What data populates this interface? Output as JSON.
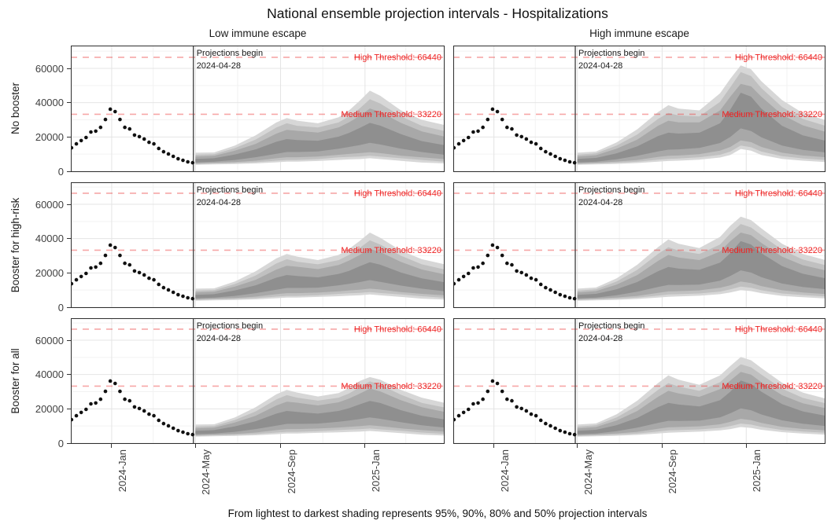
{
  "title": "National ensemble projection intervals - Hospitalizations",
  "caption": "From lightest to darkest shading represents 95%, 90%, 80% and 50% projection intervals",
  "annotations": {
    "projection_begin_line1": "Projections begin",
    "projection_begin_line2": "2024-04-28",
    "high_threshold_label": "High Threshold: 66440",
    "medium_threshold_label": "Medium Threshold: 33220"
  },
  "colors": {
    "band_95": "#d7d7d7",
    "band_90": "#c0c0c0",
    "band_80": "#a8a8a8",
    "band_50": "#8f8f8f",
    "observed_dot": "#111111",
    "threshold_line": "rgba(235,60,60,0.45)",
    "threshold_text": "#ee2222",
    "grid_major": "#e4e4e4",
    "grid_minor": "#f2f2f2",
    "panel_border": "#2e2e2e",
    "projection_vline": "#4a4a4a",
    "axis_text": "#404040",
    "annotation_text": "#1a1a1a"
  },
  "chart_data": {
    "type": "area",
    "title": "National ensemble projection intervals - Hospitalizations",
    "ylabel": "",
    "xlabel": "",
    "facet_columns": [
      "Low immune escape",
      "High immune escape"
    ],
    "facet_rows": [
      "No booster",
      "Booster for high-risk",
      "Booster for all"
    ],
    "intervals": [
      "95%",
      "90%",
      "80%",
      "50%"
    ],
    "x_domain": {
      "start_date": "2023-11-03",
      "end_date": "2025-04-26",
      "days": [
        0,
        540
      ]
    },
    "x_ticks": [
      {
        "label": "2024-Jan",
        "day": 59
      },
      {
        "label": "2024-May",
        "day": 180
      },
      {
        "label": "2024-Sep",
        "day": 303
      },
      {
        "label": "2025-Jan",
        "day": 425
      }
    ],
    "x_minor_days": [
      119,
      241,
      364,
      484
    ],
    "y_ticks": [
      0,
      20000,
      40000,
      60000
    ],
    "y_minor": [
      10000,
      30000,
      50000,
      70000
    ],
    "y_units_per_131px": 60000,
    "thresholds": {
      "high": 66440,
      "medium": 33220
    },
    "projection_start": {
      "date": "2024-04-28",
      "day": 177
    },
    "observed": {
      "start_day": 1,
      "step_days": 7,
      "values": [
        13700,
        16000,
        17900,
        19700,
        22900,
        23400,
        25600,
        30200,
        36200,
        34800,
        30200,
        25600,
        24700,
        21100,
        20200,
        18800,
        16900,
        16000,
        13300,
        11400,
        10100,
        8700,
        7300,
        6400,
        5500,
        5000
      ]
    },
    "fan_days": [
      180,
      207,
      237,
      267,
      297,
      312,
      327,
      357,
      387,
      402,
      417,
      432,
      447,
      477,
      507,
      540
    ],
    "panels": [
      {
        "row": "No booster",
        "column": "Low immune escape",
        "fan": {
          "lo95": [
            3800,
            4000,
            4200,
            4600,
            5200,
            5600,
            5600,
            6000,
            6600,
            6900,
            7100,
            7600,
            7100,
            6100,
            5100,
            4600
          ],
          "lo90": [
            4200,
            4600,
            4800,
            5300,
            6200,
            6600,
            6600,
            7100,
            8100,
            8400,
            8600,
            9100,
            8600,
            7600,
            6600,
            5600
          ],
          "lo80": [
            4600,
            5000,
            5400,
            6200,
            7600,
            8200,
            8200,
            8600,
            9600,
            10100,
            10600,
            11100,
            10600,
            9100,
            8100,
            7100
          ],
          "lo50": [
            5200,
            5600,
            6600,
            8200,
            10200,
            11200,
            11200,
            11600,
            13200,
            14200,
            15200,
            16600,
            15600,
            13200,
            11200,
            9600
          ],
          "hi50": [
            7200,
            7600,
            9800,
            12800,
            17200,
            18800,
            18200,
            17800,
            20200,
            22400,
            25200,
            28200,
            26600,
            21600,
            17600,
            15200
          ],
          "hi80": [
            8600,
            9000,
            12000,
            16000,
            22000,
            24200,
            23600,
            22600,
            25600,
            28600,
            32200,
            36600,
            34600,
            28200,
            23200,
            20200
          ],
          "hi90": [
            9600,
            10000,
            13500,
            18500,
            25500,
            28000,
            26500,
            25500,
            28500,
            32000,
            36500,
            42000,
            39500,
            32000,
            26500,
            23500
          ],
          "hi95": [
            10800,
            11000,
            15000,
            21000,
            28500,
            31000,
            29500,
            28000,
            31500,
            35500,
            41000,
            47000,
            44000,
            35500,
            30000,
            27000
          ]
        }
      },
      {
        "row": "No booster",
        "column": "High immune escape",
        "fan": {
          "lo95": [
            3800,
            4000,
            4300,
            4800,
            5600,
            6000,
            6200,
            6800,
            8000,
            9500,
            13000,
            12000,
            9500,
            7200,
            6200,
            5400
          ],
          "lo90": [
            4200,
            4600,
            5000,
            5600,
            6800,
            7200,
            7400,
            8200,
            9600,
            11500,
            15000,
            14000,
            11500,
            8800,
            7500,
            6600
          ],
          "lo80": [
            4600,
            5000,
            5700,
            6600,
            8400,
            9000,
            9200,
            10000,
            12000,
            14200,
            18000,
            17000,
            14200,
            10800,
            9200,
            8200
          ],
          "lo50": [
            5200,
            5600,
            7000,
            9000,
            11600,
            12600,
            12800,
            13600,
            16500,
            20000,
            25000,
            23500,
            19800,
            15000,
            12500,
            11000
          ],
          "hi50": [
            7200,
            7800,
            10500,
            14500,
            20500,
            22500,
            22000,
            22500,
            28000,
            36000,
            45800,
            43500,
            36500,
            26500,
            21000,
            17800
          ],
          "hi80": [
            8600,
            9400,
            13200,
            18500,
            26500,
            29500,
            28500,
            28500,
            35500,
            43500,
            51000,
            49500,
            43500,
            33000,
            26800,
            23000
          ],
          "hi90": [
            9600,
            10500,
            15000,
            21500,
            30500,
            34000,
            32500,
            32000,
            40500,
            49000,
            57800,
            55500,
            48500,
            37500,
            30500,
            26500
          ],
          "hi95": [
            10800,
            11500,
            16800,
            24500,
            34500,
            38500,
            36500,
            35500,
            45500,
            54000,
            61700,
            59500,
            52500,
            41500,
            34000,
            29800
          ]
        }
      },
      {
        "row": "Booster for high-risk",
        "column": "Low immune escape",
        "fan": {
          "lo95": [
            3800,
            4000,
            4200,
            4600,
            5200,
            5600,
            5600,
            6000,
            6400,
            6700,
            6900,
            7400,
            6900,
            6000,
            5000,
            4500
          ],
          "lo90": [
            4200,
            4600,
            4800,
            5300,
            6200,
            6600,
            6600,
            7000,
            7800,
            8100,
            8400,
            8800,
            8300,
            7400,
            6400,
            5500
          ],
          "lo80": [
            4600,
            5000,
            5400,
            6200,
            7600,
            8200,
            8200,
            8500,
            9300,
            9800,
            10200,
            10800,
            10300,
            8800,
            7800,
            6900
          ],
          "lo50": [
            5200,
            5600,
            6600,
            8200,
            10200,
            11200,
            11200,
            11400,
            12800,
            13600,
            14600,
            15800,
            14800,
            12600,
            10800,
            9300
          ],
          "hi50": [
            7200,
            7600,
            9800,
            12800,
            17200,
            18800,
            18200,
            17400,
            19400,
            21200,
            23800,
            26200,
            24800,
            20200,
            16800,
            14500
          ],
          "hi80": [
            8600,
            9000,
            12000,
            16000,
            22000,
            24200,
            23600,
            22200,
            24600,
            27200,
            30400,
            34000,
            32200,
            26400,
            22000,
            19200
          ],
          "hi90": [
            9600,
            10000,
            13500,
            18500,
            25500,
            28000,
            26500,
            25000,
            27500,
            30500,
            34500,
            39000,
            36500,
            30000,
            25000,
            22000
          ],
          "hi95": [
            10800,
            11000,
            15000,
            21000,
            28500,
            31000,
            29500,
            27500,
            30500,
            34000,
            38500,
            43500,
            40500,
            33000,
            28000,
            25000
          ]
        }
      },
      {
        "row": "Booster for high-risk",
        "column": "High immune escape",
        "fan": {
          "lo95": [
            3800,
            4000,
            4300,
            4800,
            5600,
            6100,
            6300,
            6700,
            7600,
            8600,
            10000,
            9400,
            8200,
            6600,
            5800,
            5100
          ],
          "lo90": [
            4200,
            4600,
            5000,
            5600,
            6800,
            7400,
            7600,
            8000,
            9100,
            10400,
            12000,
            11300,
            9900,
            8000,
            7100,
            6300
          ],
          "lo80": [
            4600,
            5000,
            5700,
            6600,
            8400,
            9200,
            9400,
            9800,
            11300,
            12800,
            15000,
            14100,
            12300,
            9900,
            8600,
            7700
          ],
          "lo50": [
            5200,
            5600,
            7000,
            9000,
            11800,
            13000,
            12900,
            13200,
            15500,
            18200,
            21500,
            20200,
            17500,
            13800,
            11800,
            10500
          ],
          "hi50": [
            7200,
            7800,
            10500,
            14700,
            21000,
            23500,
            22500,
            21800,
            26000,
            31500,
            38500,
            36500,
            31500,
            24000,
            19500,
            16800
          ],
          "hi80": [
            8600,
            9400,
            13200,
            18800,
            27000,
            30500,
            29000,
            27500,
            32500,
            38500,
            43500,
            42000,
            37500,
            29500,
            24500,
            21500
          ],
          "hi90": [
            9600,
            10500,
            15000,
            21800,
            31000,
            35000,
            33000,
            31000,
            36500,
            43000,
            48500,
            46500,
            42000,
            33500,
            27800,
            24500
          ],
          "hi95": [
            10800,
            11500,
            16800,
            24800,
            35000,
            39500,
            37000,
            34500,
            41000,
            47500,
            52800,
            50800,
            46000,
            37000,
            31000,
            27500
          ]
        }
      },
      {
        "row": "Booster for all",
        "column": "Low immune escape",
        "fan": {
          "lo95": [
            3800,
            4000,
            4200,
            4600,
            5200,
            5600,
            5600,
            6000,
            6300,
            6500,
            6700,
            7100,
            6700,
            5800,
            4900,
            4400
          ],
          "lo90": [
            4200,
            4600,
            4800,
            5300,
            6200,
            6600,
            6600,
            7000,
            7600,
            7900,
            8100,
            8500,
            8000,
            7200,
            6200,
            5400
          ],
          "lo80": [
            4600,
            5000,
            5400,
            6200,
            7600,
            8200,
            8200,
            8500,
            9100,
            9500,
            9900,
            10400,
            9900,
            8600,
            7600,
            6700
          ],
          "lo50": [
            5200,
            5600,
            6600,
            8200,
            10200,
            11200,
            11200,
            11400,
            12500,
            13200,
            14000,
            15000,
            14200,
            12200,
            10400,
            9000
          ],
          "hi50": [
            7200,
            7600,
            9800,
            12800,
            17200,
            18800,
            18200,
            17200,
            18800,
            20400,
            22600,
            24600,
            23400,
            19200,
            16000,
            13800
          ],
          "hi80": [
            8600,
            9000,
            12000,
            16000,
            22000,
            24200,
            23600,
            22000,
            23800,
            26000,
            28800,
            31800,
            30200,
            25000,
            21000,
            18200
          ],
          "hi90": [
            9600,
            10000,
            13500,
            18500,
            25500,
            28000,
            26500,
            24800,
            26500,
            29000,
            32500,
            36000,
            34000,
            28200,
            23500,
            20800
          ],
          "hi95": [
            10800,
            11000,
            15000,
            21000,
            28500,
            31000,
            29500,
            27200,
            29200,
            32200,
            36200,
            38500,
            37000,
            31000,
            26500,
            23500
          ]
        }
      },
      {
        "row": "Booster for all",
        "column": "High immune escape",
        "fan": {
          "lo95": [
            3800,
            4000,
            4300,
            4800,
            5600,
            6100,
            6300,
            6700,
            7400,
            8200,
            9400,
            8900,
            7800,
            6400,
            5600,
            4900
          ],
          "lo90": [
            4200,
            4600,
            5000,
            5600,
            6800,
            7400,
            7600,
            8000,
            8900,
            10000,
            11400,
            10800,
            9500,
            7700,
            6800,
            6100
          ],
          "lo80": [
            4600,
            5000,
            5700,
            6600,
            8400,
            9200,
            9400,
            9800,
            11000,
            12400,
            14200,
            13400,
            11800,
            9500,
            8300,
            7400
          ],
          "lo50": [
            5200,
            5600,
            7000,
            9000,
            11800,
            13000,
            12900,
            13100,
            15000,
            17400,
            20300,
            19200,
            16700,
            13300,
            11300,
            10000
          ],
          "hi50": [
            7200,
            7800,
            10500,
            14700,
            21000,
            23500,
            22500,
            21400,
            25000,
            30000,
            36500,
            34500,
            30000,
            22800,
            18500,
            16000
          ],
          "hi80": [
            8600,
            9400,
            13200,
            18800,
            27000,
            30500,
            29000,
            27000,
            31500,
            36500,
            41500,
            40000,
            35500,
            28000,
            23200,
            20400
          ],
          "hi90": [
            9600,
            10500,
            15000,
            21800,
            31000,
            35000,
            33000,
            30500,
            35500,
            41000,
            46000,
            44200,
            40000,
            31800,
            26400,
            23200
          ],
          "hi95": [
            10800,
            11500,
            16800,
            24800,
            35000,
            39500,
            37000,
            34000,
            39500,
            45000,
            50200,
            48300,
            43800,
            35200,
            29500,
            26000
          ]
        }
      }
    ]
  }
}
